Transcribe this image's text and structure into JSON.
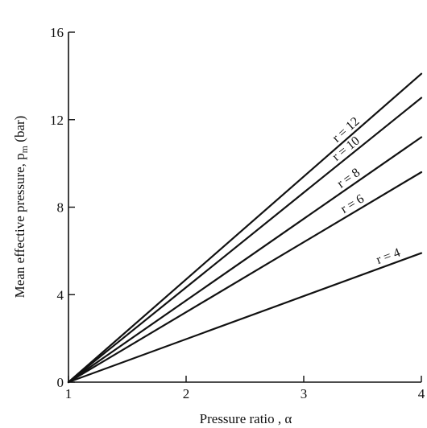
{
  "chart_data": {
    "type": "line",
    "xlabel": "Pressure ratio , α",
    "ylabel": "Mean effective pressure, p_m (bar)",
    "xlim": [
      1,
      4
    ],
    "ylim": [
      0,
      16
    ],
    "x_ticks": [
      "1",
      "2",
      "3",
      "4"
    ],
    "y_ticks": [
      "0",
      "4",
      "8",
      "12",
      "16"
    ],
    "grid": false,
    "legend": "none",
    "series": [
      {
        "name": "r = 4",
        "x": [
          1,
          4
        ],
        "y": [
          0,
          5.9
        ]
      },
      {
        "name": "r = 6",
        "x": [
          1,
          4
        ],
        "y": [
          0,
          9.6
        ]
      },
      {
        "name": "r = 8",
        "x": [
          1,
          4
        ],
        "y": [
          0,
          11.2
        ]
      },
      {
        "name": "r = 10",
        "x": [
          1,
          4
        ],
        "y": [
          0,
          13.0
        ]
      },
      {
        "name": "r = 12",
        "x": [
          1,
          4
        ],
        "y": [
          0,
          14.1
        ]
      }
    ]
  }
}
